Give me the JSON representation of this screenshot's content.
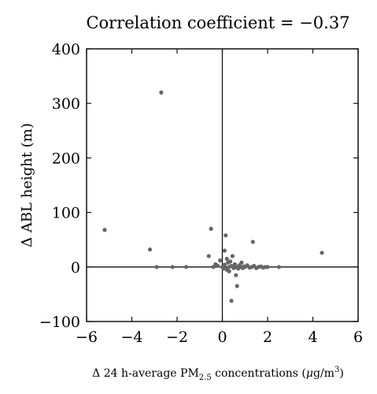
{
  "chart_data": {
    "type": "scatter",
    "title": "Correlation coefficient = −0.37",
    "xlabel": {
      "prefix": "Δ 24 h-average PM",
      "sub": "2.5",
      "middle": " concentrations (",
      "mu": "μ",
      "unit": "g/m",
      "sup": "3",
      "close": ")"
    },
    "ylabel": "Δ ABL height (m)",
    "xlim": [
      -6,
      6
    ],
    "ylim": [
      -100,
      400
    ],
    "xticks": [
      -6,
      -4,
      -2,
      0,
      2,
      4,
      6
    ],
    "yticks": [
      -100,
      0,
      100,
      200,
      300,
      400
    ],
    "xtick_labels": [
      "−6",
      "−4",
      "−2",
      "0",
      "2",
      "4",
      "6"
    ],
    "ytick_labels": [
      "−100",
      "0",
      "100",
      "200",
      "300",
      "400"
    ],
    "zero_lines": true,
    "grid": false,
    "point_color": "#666666",
    "points": [
      {
        "x": -5.2,
        "y": 68
      },
      {
        "x": -2.7,
        "y": 320
      },
      {
        "x": -3.2,
        "y": 32
      },
      {
        "x": -2.9,
        "y": 0
      },
      {
        "x": -2.2,
        "y": 0
      },
      {
        "x": -1.6,
        "y": 0
      },
      {
        "x": -0.5,
        "y": 70
      },
      {
        "x": -0.6,
        "y": 20
      },
      {
        "x": -0.4,
        "y": 0
      },
      {
        "x": -0.3,
        "y": 5
      },
      {
        "x": -0.2,
        "y": 2
      },
      {
        "x": -0.1,
        "y": 12
      },
      {
        "x": 0.0,
        "y": 0
      },
      {
        "x": 0.05,
        "y": -3
      },
      {
        "x": 0.1,
        "y": 30
      },
      {
        "x": 0.1,
        "y": 4
      },
      {
        "x": 0.15,
        "y": 58
      },
      {
        "x": 0.2,
        "y": 15
      },
      {
        "x": 0.2,
        "y": -5
      },
      {
        "x": 0.25,
        "y": 8
      },
      {
        "x": 0.3,
        "y": 0
      },
      {
        "x": 0.3,
        "y": -8
      },
      {
        "x": 0.35,
        "y": 10
      },
      {
        "x": 0.4,
        "y": 2
      },
      {
        "x": 0.4,
        "y": -62
      },
      {
        "x": 0.45,
        "y": 20
      },
      {
        "x": 0.5,
        "y": -2
      },
      {
        "x": 0.55,
        "y": 5
      },
      {
        "x": 0.6,
        "y": 0
      },
      {
        "x": 0.6,
        "y": -15
      },
      {
        "x": 0.65,
        "y": -35
      },
      {
        "x": 0.7,
        "y": -3
      },
      {
        "x": 0.75,
        "y": 3
      },
      {
        "x": 0.8,
        "y": 0
      },
      {
        "x": 0.85,
        "y": 8
      },
      {
        "x": 0.9,
        "y": -2
      },
      {
        "x": 0.95,
        "y": 1
      },
      {
        "x": 1.0,
        "y": 0
      },
      {
        "x": 1.1,
        "y": 3
      },
      {
        "x": 1.2,
        "y": -1
      },
      {
        "x": 1.3,
        "y": 0
      },
      {
        "x": 1.35,
        "y": 46
      },
      {
        "x": 1.4,
        "y": 2
      },
      {
        "x": 1.5,
        "y": -2
      },
      {
        "x": 1.6,
        "y": 0
      },
      {
        "x": 1.7,
        "y": 1
      },
      {
        "x": 1.8,
        "y": -1
      },
      {
        "x": 1.9,
        "y": 0
      },
      {
        "x": 2.0,
        "y": 0
      },
      {
        "x": 2.5,
        "y": 0
      },
      {
        "x": 4.4,
        "y": 26
      }
    ]
  }
}
